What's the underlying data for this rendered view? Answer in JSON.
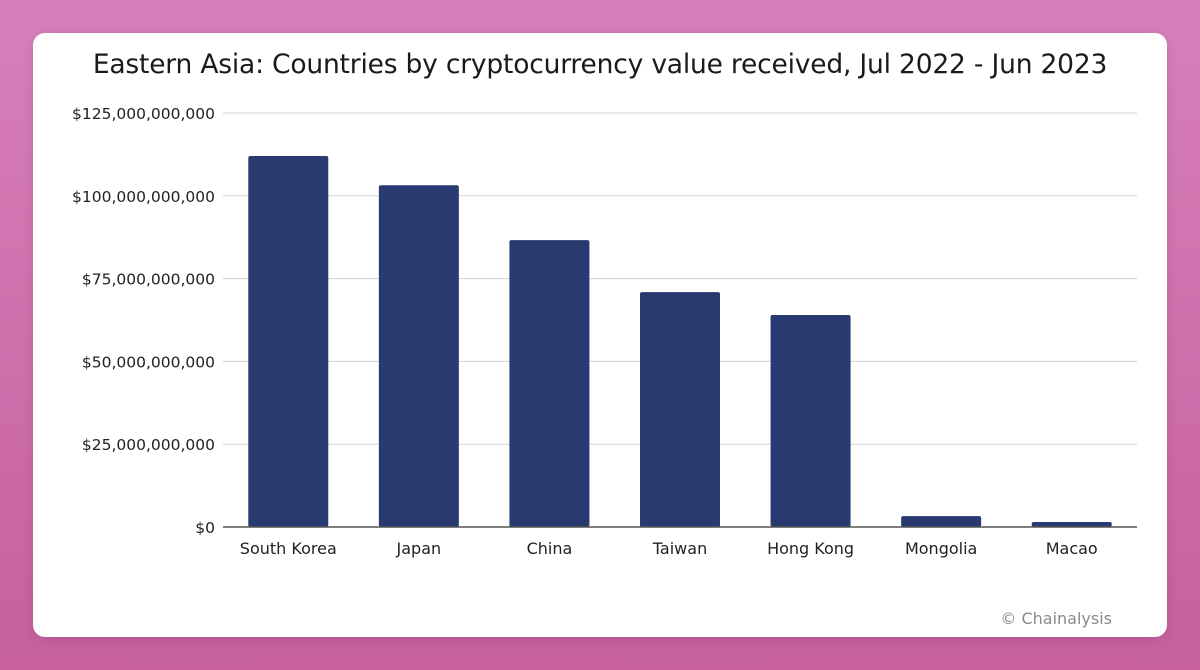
{
  "chart_data": {
    "type": "bar",
    "title": "Eastern Asia: Countries by cryptocurrency value received, Jul 2022 - Jun 2023",
    "xlabel": "",
    "ylabel": "",
    "categories": [
      "South Korea",
      "Japan",
      "China",
      "Taiwan",
      "Hong Kong",
      "Mongolia",
      "Macao"
    ],
    "values": [
      112000000000,
      103200000000,
      86600000000,
      70900000000,
      64000000000,
      3300000000,
      1500000000
    ],
    "ylim": [
      0,
      125000000000
    ],
    "yticks": [
      0,
      25000000000,
      50000000000,
      75000000000,
      100000000000,
      125000000000
    ],
    "ytick_labels": [
      "$0",
      "$25,000,000,000",
      "$50,000,000,000",
      "$75,000,000,000",
      "$100,000,000,000",
      "$125,000,000,000"
    ],
    "grid": true,
    "legend": "none",
    "colors": {
      "bar": "#283a6f",
      "grid": "#d3d3d3",
      "axis": "#555555"
    }
  },
  "watermark": "© Chainalysis"
}
